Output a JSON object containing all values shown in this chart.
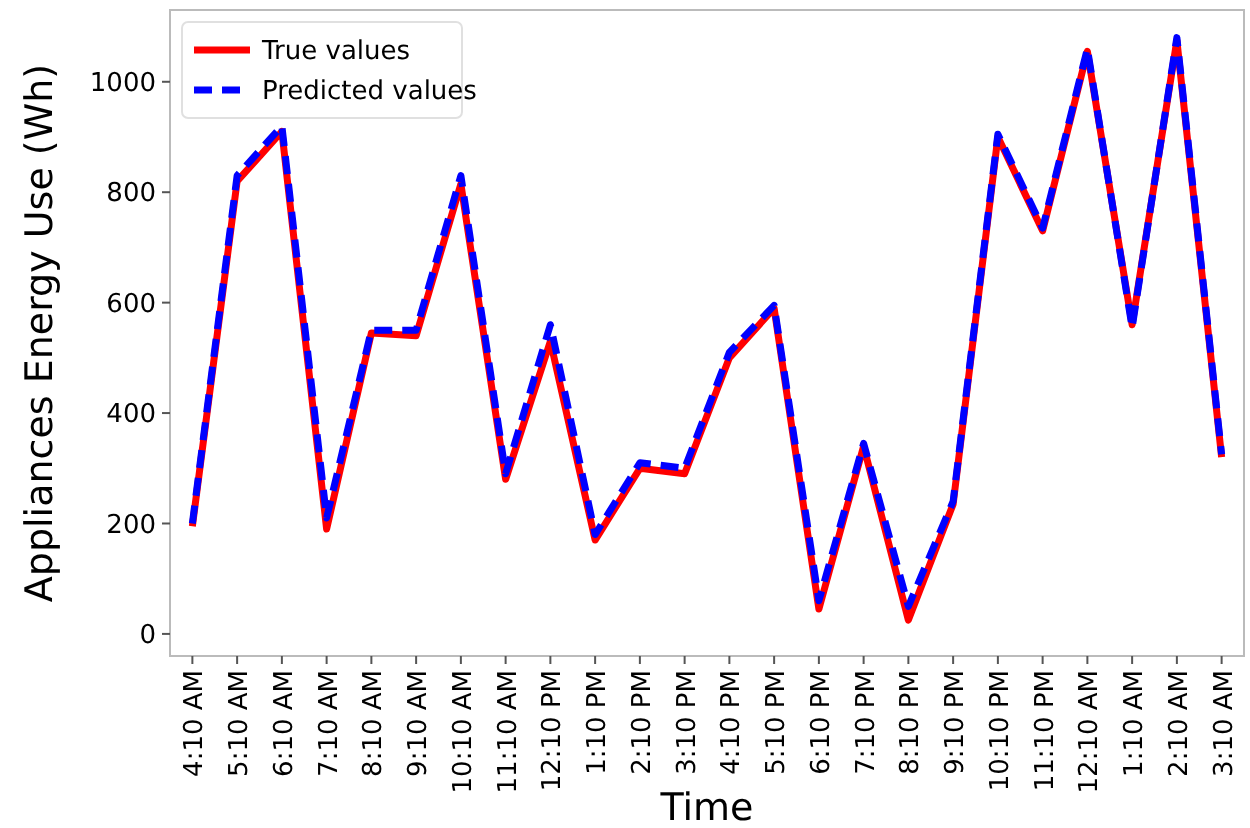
{
  "chart_data": {
    "type": "line",
    "xlabel": "Time",
    "ylabel": "Appliances Energy Use (Wh)",
    "categories": [
      "4:10 AM",
      "5:10 AM",
      "6:10 AM",
      "7:10 AM",
      "8:10 AM",
      "9:10 AM",
      "10:10 AM",
      "11:10 AM",
      "12:10 PM",
      "1:10 PM",
      "2:10 PM",
      "3:10 PM",
      "4:10 PM",
      "5:10 PM",
      "6:10 PM",
      "7:10 PM",
      "8:10 PM",
      "9:10 PM",
      "10:10 PM",
      "11:10 PM",
      "12:10 AM",
      "1:10 AM",
      "2:10 AM",
      "3:10 AM"
    ],
    "series": [
      {
        "name": "True values",
        "color": "#ff0000",
        "line_style": "solid",
        "values": [
          195,
          820,
          910,
          190,
          545,
          540,
          815,
          280,
          530,
          170,
          300,
          290,
          500,
          590,
          45,
          340,
          25,
          235,
          900,
          730,
          1055,
          560,
          1075,
          320
        ]
      },
      {
        "name": "Predicted values",
        "color": "#0000ff",
        "line_style": "dashed",
        "values": [
          200,
          830,
          920,
          210,
          550,
          550,
          830,
          290,
          560,
          180,
          310,
          300,
          510,
          595,
          60,
          345,
          50,
          240,
          905,
          735,
          1060,
          555,
          1080,
          325
        ]
      }
    ],
    "ylim": [
      -40,
      1130
    ],
    "yticks": [
      0,
      200,
      400,
      600,
      800,
      1000
    ],
    "grid": false,
    "legend": "top left"
  }
}
